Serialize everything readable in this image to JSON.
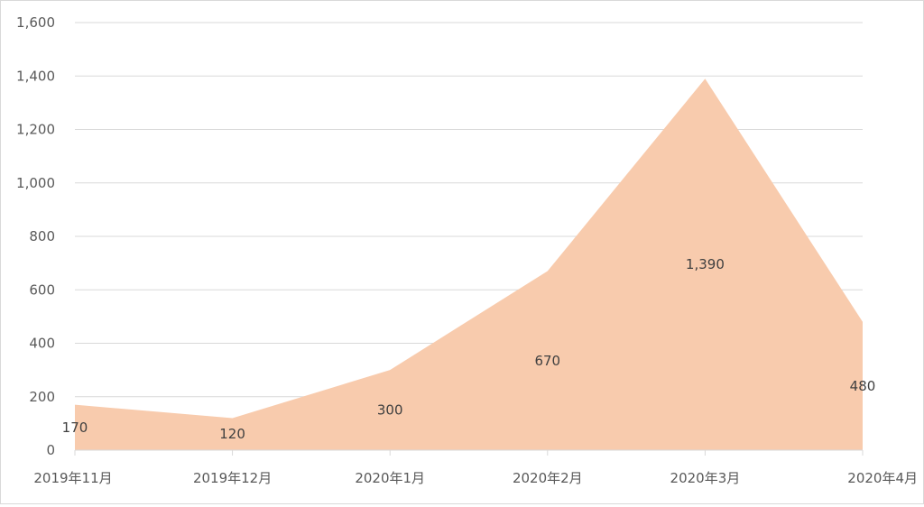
{
  "chart_data": {
    "type": "area",
    "title": "",
    "xlabel": "",
    "ylabel": "",
    "categories": [
      "2019年11月",
      "2019年12月",
      "2020年1月",
      "2020年2月",
      "2020年3月",
      "2020年4月"
    ],
    "series": [
      {
        "values": [
          170,
          120,
          300,
          670,
          1390,
          480
        ]
      }
    ],
    "data_labels": [
      "170",
      "120",
      "300",
      "670",
      "1,390",
      "480"
    ],
    "ylim": [
      0,
      1600
    ],
    "y_ticks": [
      0,
      200,
      400,
      600,
      800,
      1000,
      1200,
      1400,
      1600
    ],
    "y_tick_labels": [
      "0",
      "200",
      "400",
      "600",
      "800",
      "1,000",
      "1,200",
      "1,400",
      "1,600"
    ],
    "grid": true,
    "legend": "none",
    "colors": {
      "area_fill": "#f8cbad",
      "gridline": "#d9d9d9",
      "axis_line": "#d9d9d9",
      "tick_text": "#595959",
      "label_text": "#404040"
    }
  }
}
